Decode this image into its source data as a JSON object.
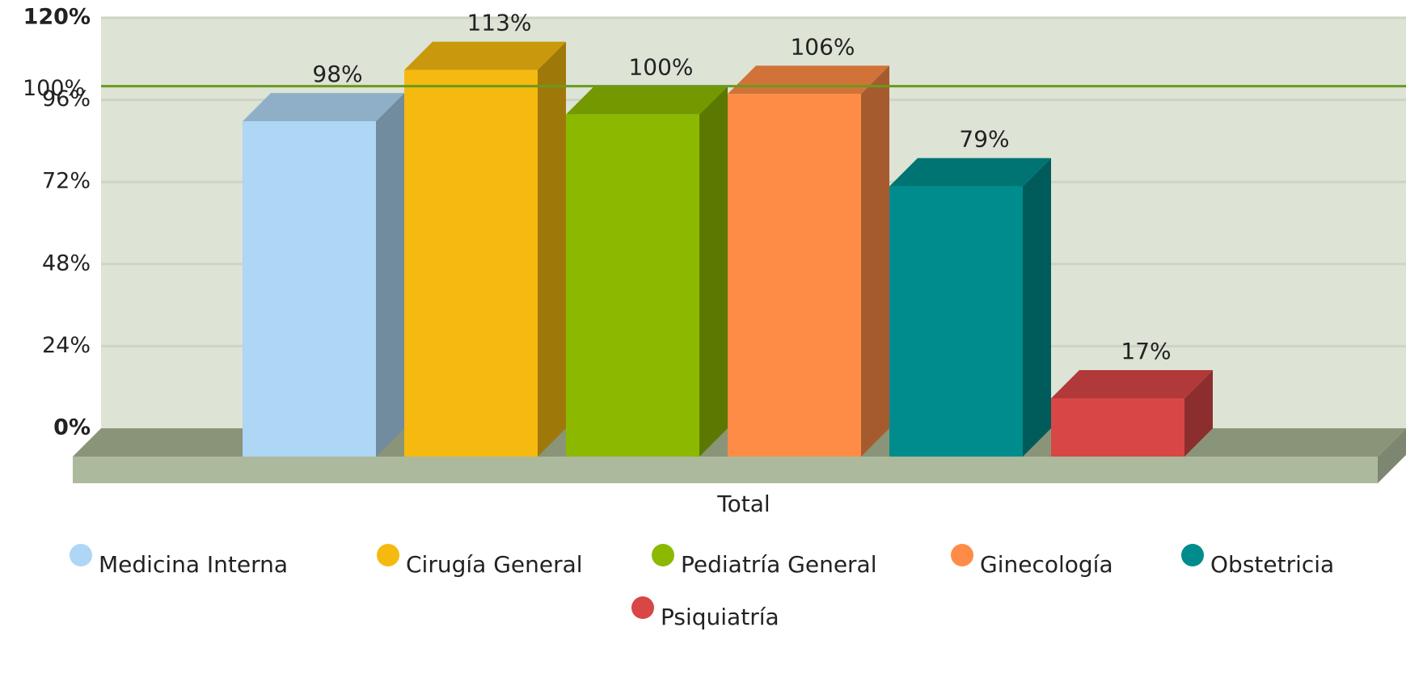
{
  "chart_data": {
    "type": "bar",
    "categories": [
      "Total"
    ],
    "series": [
      {
        "name": "Medicina Interna",
        "color": "#aed6f5",
        "values": [
          98
        ],
        "value_labels": [
          "98%"
        ]
      },
      {
        "name": "Cirugía General",
        "color": "#f5b90f",
        "values": [
          113
        ],
        "value_labels": [
          "113%"
        ]
      },
      {
        "name": "Pediatría General",
        "color": "#8cb900",
        "values": [
          100
        ],
        "value_labels": [
          "100%"
        ]
      },
      {
        "name": "Ginecología",
        "color": "#ff8c46",
        "values": [
          106
        ],
        "value_labels": [
          "106%"
        ]
      },
      {
        "name": "Obstetricia",
        "color": "#008c8c",
        "values": [
          79
        ],
        "value_labels": [
          "79%"
        ]
      },
      {
        "name": "Psiquiatría",
        "color": "#d94646",
        "values": [
          17
        ],
        "value_labels": [
          "17%"
        ]
      }
    ],
    "ylim": [
      0,
      120
    ],
    "yticks": [
      {
        "value": 0,
        "label": "0%"
      },
      {
        "value": 24,
        "label": "24%"
      },
      {
        "value": 48,
        "label": "48%"
      },
      {
        "value": 72,
        "label": "72%"
      },
      {
        "value": 96,
        "label": "96%"
      },
      {
        "value": 120,
        "label": "120%"
      }
    ],
    "target_line": {
      "value": 100,
      "label": "100%",
      "color": "#6a9a1f"
    },
    "grid": true,
    "legend": "bottom"
  }
}
